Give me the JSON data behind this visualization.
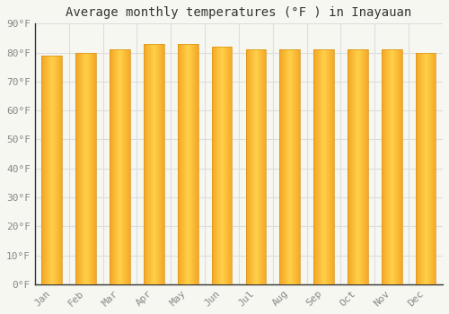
{
  "title": "Average monthly temperatures (°F ) in Inayauan",
  "months": [
    "Jan",
    "Feb",
    "Mar",
    "Apr",
    "May",
    "Jun",
    "Jul",
    "Aug",
    "Sep",
    "Oct",
    "Nov",
    "Dec"
  ],
  "values": [
    79,
    80,
    81,
    83,
    83,
    82,
    81,
    81,
    81,
    81,
    81,
    80
  ],
  "bar_color_outer": "#F5A623",
  "bar_color_inner": "#FFD04A",
  "background_color": "#F7F7F2",
  "grid_color": "#DDDDDD",
  "spine_color": "#333333",
  "tick_color": "#888888",
  "ylim": [
    0,
    90
  ],
  "ytick_step": 10,
  "title_fontsize": 10,
  "tick_fontsize": 8,
  "font_family": "monospace",
  "bar_width": 0.6
}
